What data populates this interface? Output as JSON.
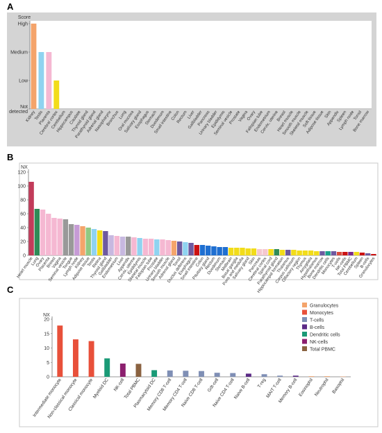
{
  "chart_data": [
    {
      "panel": "A",
      "type": "bar",
      "ylabel": "Score",
      "ytick_labels": [
        "High",
        "Medium",
        "Low",
        "Not detected"
      ],
      "ylim": [
        0,
        3
      ],
      "categories": [
        "Kidney",
        "Testis",
        "Placenta",
        "Cerebral cortex",
        "Cerebellum",
        "Hippocampus",
        "Caudate",
        "Thyroid gland",
        "Parathyroid gland",
        "Adrenal gland",
        "Nasopharynx",
        "Bronchus",
        "Lung",
        "Oral mucosa",
        "Salivary gland",
        "Esophagus",
        "Stomach",
        "Duodenum",
        "Small intestine",
        "Colon",
        "Rectum",
        "Liver",
        "Gallbladder",
        "Pancreas",
        "Urinary bladder",
        "Epididymis",
        "Seminal vesicle",
        "Prostate",
        "Vagina",
        "Ovary",
        "Fallopian tube",
        "Endometrium",
        "Cervix, uterine",
        "Breast",
        "Heart muscle",
        "Smooth muscle",
        "Skeletal muscle",
        "Soft tissue",
        "Adipose tissue",
        "Skin",
        "Appendix",
        "Spleen",
        "Lymph node",
        "Tonsil",
        "Bone marrow"
      ],
      "values": [
        3,
        2,
        2,
        1,
        0,
        0,
        0,
        0,
        0,
        0,
        0,
        0,
        0,
        0,
        0,
        0,
        0,
        0,
        0,
        0,
        0,
        0,
        0,
        0,
        0,
        0,
        0,
        0,
        0,
        0,
        0,
        0,
        0,
        0,
        0,
        0,
        0,
        0,
        0,
        0,
        0,
        0,
        0,
        0,
        0
      ],
      "colors": [
        "#f4a46b",
        "#8fd3f0",
        "#f5b8d2",
        "#f2dc1a"
      ]
    },
    {
      "panel": "B",
      "type": "bar",
      "ylabel": "NX",
      "ylim": [
        0,
        120
      ],
      "yticks": [
        0,
        20,
        40,
        60,
        80,
        100,
        120
      ],
      "categories": [
        "Heart muscle",
        "Lung",
        "Ovary",
        "Placenta",
        "Breast",
        "Vagina",
        "Seminal vesicle",
        "Tongue",
        "Lymph node",
        "Kidney",
        "Adipose tissue",
        "Testis",
        "Retina",
        "Thyroid gland",
        "Gallbladder",
        "Endometrium",
        "Liver",
        "Appendix",
        "Cervix, uterine",
        "Epididymis",
        "Skeletal muscle",
        "Fallopian tube",
        "Prostate",
        "Urinary bladder",
        "Smooth muscle",
        "Adrenal gland",
        "Tonsil",
        "Ductus deferens",
        "Esophagus",
        "Small intestine",
        "Colon",
        "Pituitary gland",
        "Rectum",
        "Duodenum",
        "Stomach",
        "Midbrain",
        "Basal ganglia",
        "Pons and medulla",
        "Salivary gland",
        "Skin",
        "Pancreas",
        "Cerebral cortex",
        "Spinal cord",
        "Parathyroid gland",
        "Hippocampal formation",
        "Thalamus",
        "Corpus callosum",
        "Olfactory region",
        "Thymus",
        "Amygdala",
        "Hypothalamus",
        "Bone marrow",
        "Dendritic cells",
        "Monocytes",
        "T-cells",
        "NK-cells",
        "Total PBMC",
        "Cerebellum",
        "Spleen",
        "B-cells",
        "Granulocytes"
      ],
      "values": [
        106,
        67,
        66,
        60,
        54,
        53,
        52,
        45,
        44,
        42,
        40,
        38,
        36,
        35,
        29,
        28,
        27,
        27,
        26,
        25,
        24,
        24,
        23,
        23,
        22,
        21,
        20,
        19,
        18,
        15,
        15,
        14,
        13,
        12,
        12,
        11,
        11,
        11,
        10,
        10,
        9,
        9,
        9,
        9,
        8,
        8,
        8,
        7,
        7,
        7,
        6,
        6,
        6,
        6,
        5,
        5,
        5,
        5,
        4,
        3,
        2
      ],
      "colors": [
        "#c23b5a",
        "#2e8b57",
        "#f5b8d2",
        "#f5b8d2",
        "#f5b8d2",
        "#f5b8d2",
        "#999999",
        "#999999",
        "#c69bd6",
        "#f4a46b",
        "#90c983",
        "#8fd3f0",
        "#f2dc1a",
        "#6e5aa0",
        "#c7b8e0",
        "#f5b8d2",
        "#c7b8e0",
        "#999999",
        "#f5b8d2",
        "#8fd3f0",
        "#f5b8d2",
        "#f5b8d2",
        "#8fd3f0",
        "#f5b8d2",
        "#f5b8d2",
        "#f4a46b",
        "#6e5aa0",
        "#8fd3f0",
        "#6e5aa0",
        "#cc1111",
        "#1f6fd1",
        "#1f6fd1",
        "#1f6fd1",
        "#1f6fd1",
        "#1f6fd1",
        "#f2dc1a",
        "#f2dc1a",
        "#f2dc1a",
        "#f2dc1a",
        "#f2dc1a",
        "#f5c7cf",
        "#f5c7cf",
        "#f2dc1a",
        "#2e8b57",
        "#f2dc1a",
        "#6e5aa0",
        "#f2dc1a",
        "#f2dc1a",
        "#f2dc1a",
        "#f2dc1a",
        "#f2dc1a",
        "#6e5aa0",
        "#1aa08a",
        "#6e5aa0",
        "#d94c3d",
        "#cc1111",
        "#7b2a8a",
        "#f2dc1a",
        "#cc1111",
        "#6e5aa0",
        "#cc1111"
      ]
    },
    {
      "panel": "C",
      "type": "bar",
      "ylabel": "NX",
      "ylim": [
        0,
        20
      ],
      "yticks": [
        0,
        5,
        10,
        15,
        20
      ],
      "categories": [
        "Intermediate monocyte",
        "Non-classical monocyte",
        "Classical monocyte",
        "Myeloid DC",
        "NK-cell",
        "Total PBMC",
        "Plasmacytoid DC",
        "Memory CD8 T-cell",
        "Memory CD4 T-cell",
        "Naive CD8 T-cell",
        "Gdt-cell",
        "Naive CD4 T-cell",
        "Naive B-cell",
        "T-reg",
        "MAIT T-cell",
        "Memory B-cell",
        "Eosinophil",
        "Neutrophil",
        "Basophil"
      ],
      "values": [
        17.8,
        13.0,
        12.4,
        6.4,
        4.6,
        4.5,
        2.3,
        2.2,
        2.1,
        2.0,
        1.4,
        1.3,
        1.1,
        0.9,
        0.4,
        0.4,
        0.2,
        0.2,
        0.1
      ],
      "colors": [
        "#e8503a",
        "#e8503a",
        "#e8503a",
        "#1a9a76",
        "#8b1f6e",
        "#8a6240",
        "#1a9a76",
        "#7f8fb5",
        "#7f8fb5",
        "#7f8fb5",
        "#7f8fb5",
        "#7f8fb5",
        "#5b2a86",
        "#7f8fb5",
        "#7f8fb5",
        "#5b2a86",
        "#f4a46b",
        "#f4a46b",
        "#f4a46b"
      ],
      "legend": [
        {
          "name": "Granulocytes",
          "color": "#f4a46b"
        },
        {
          "name": "Monocytes",
          "color": "#e8503a"
        },
        {
          "name": "T-cells",
          "color": "#7f8fb5"
        },
        {
          "name": "B-cells",
          "color": "#5b2a86"
        },
        {
          "name": "Dendritic cells",
          "color": "#1a9a76"
        },
        {
          "name": "NK-cells",
          "color": "#8b1f6e"
        },
        {
          "name": "Total PBMC",
          "color": "#8a6240"
        }
      ],
      "legend_position": "top-right"
    }
  ],
  "panels": {
    "a": "A",
    "b": "B",
    "c": "C"
  }
}
